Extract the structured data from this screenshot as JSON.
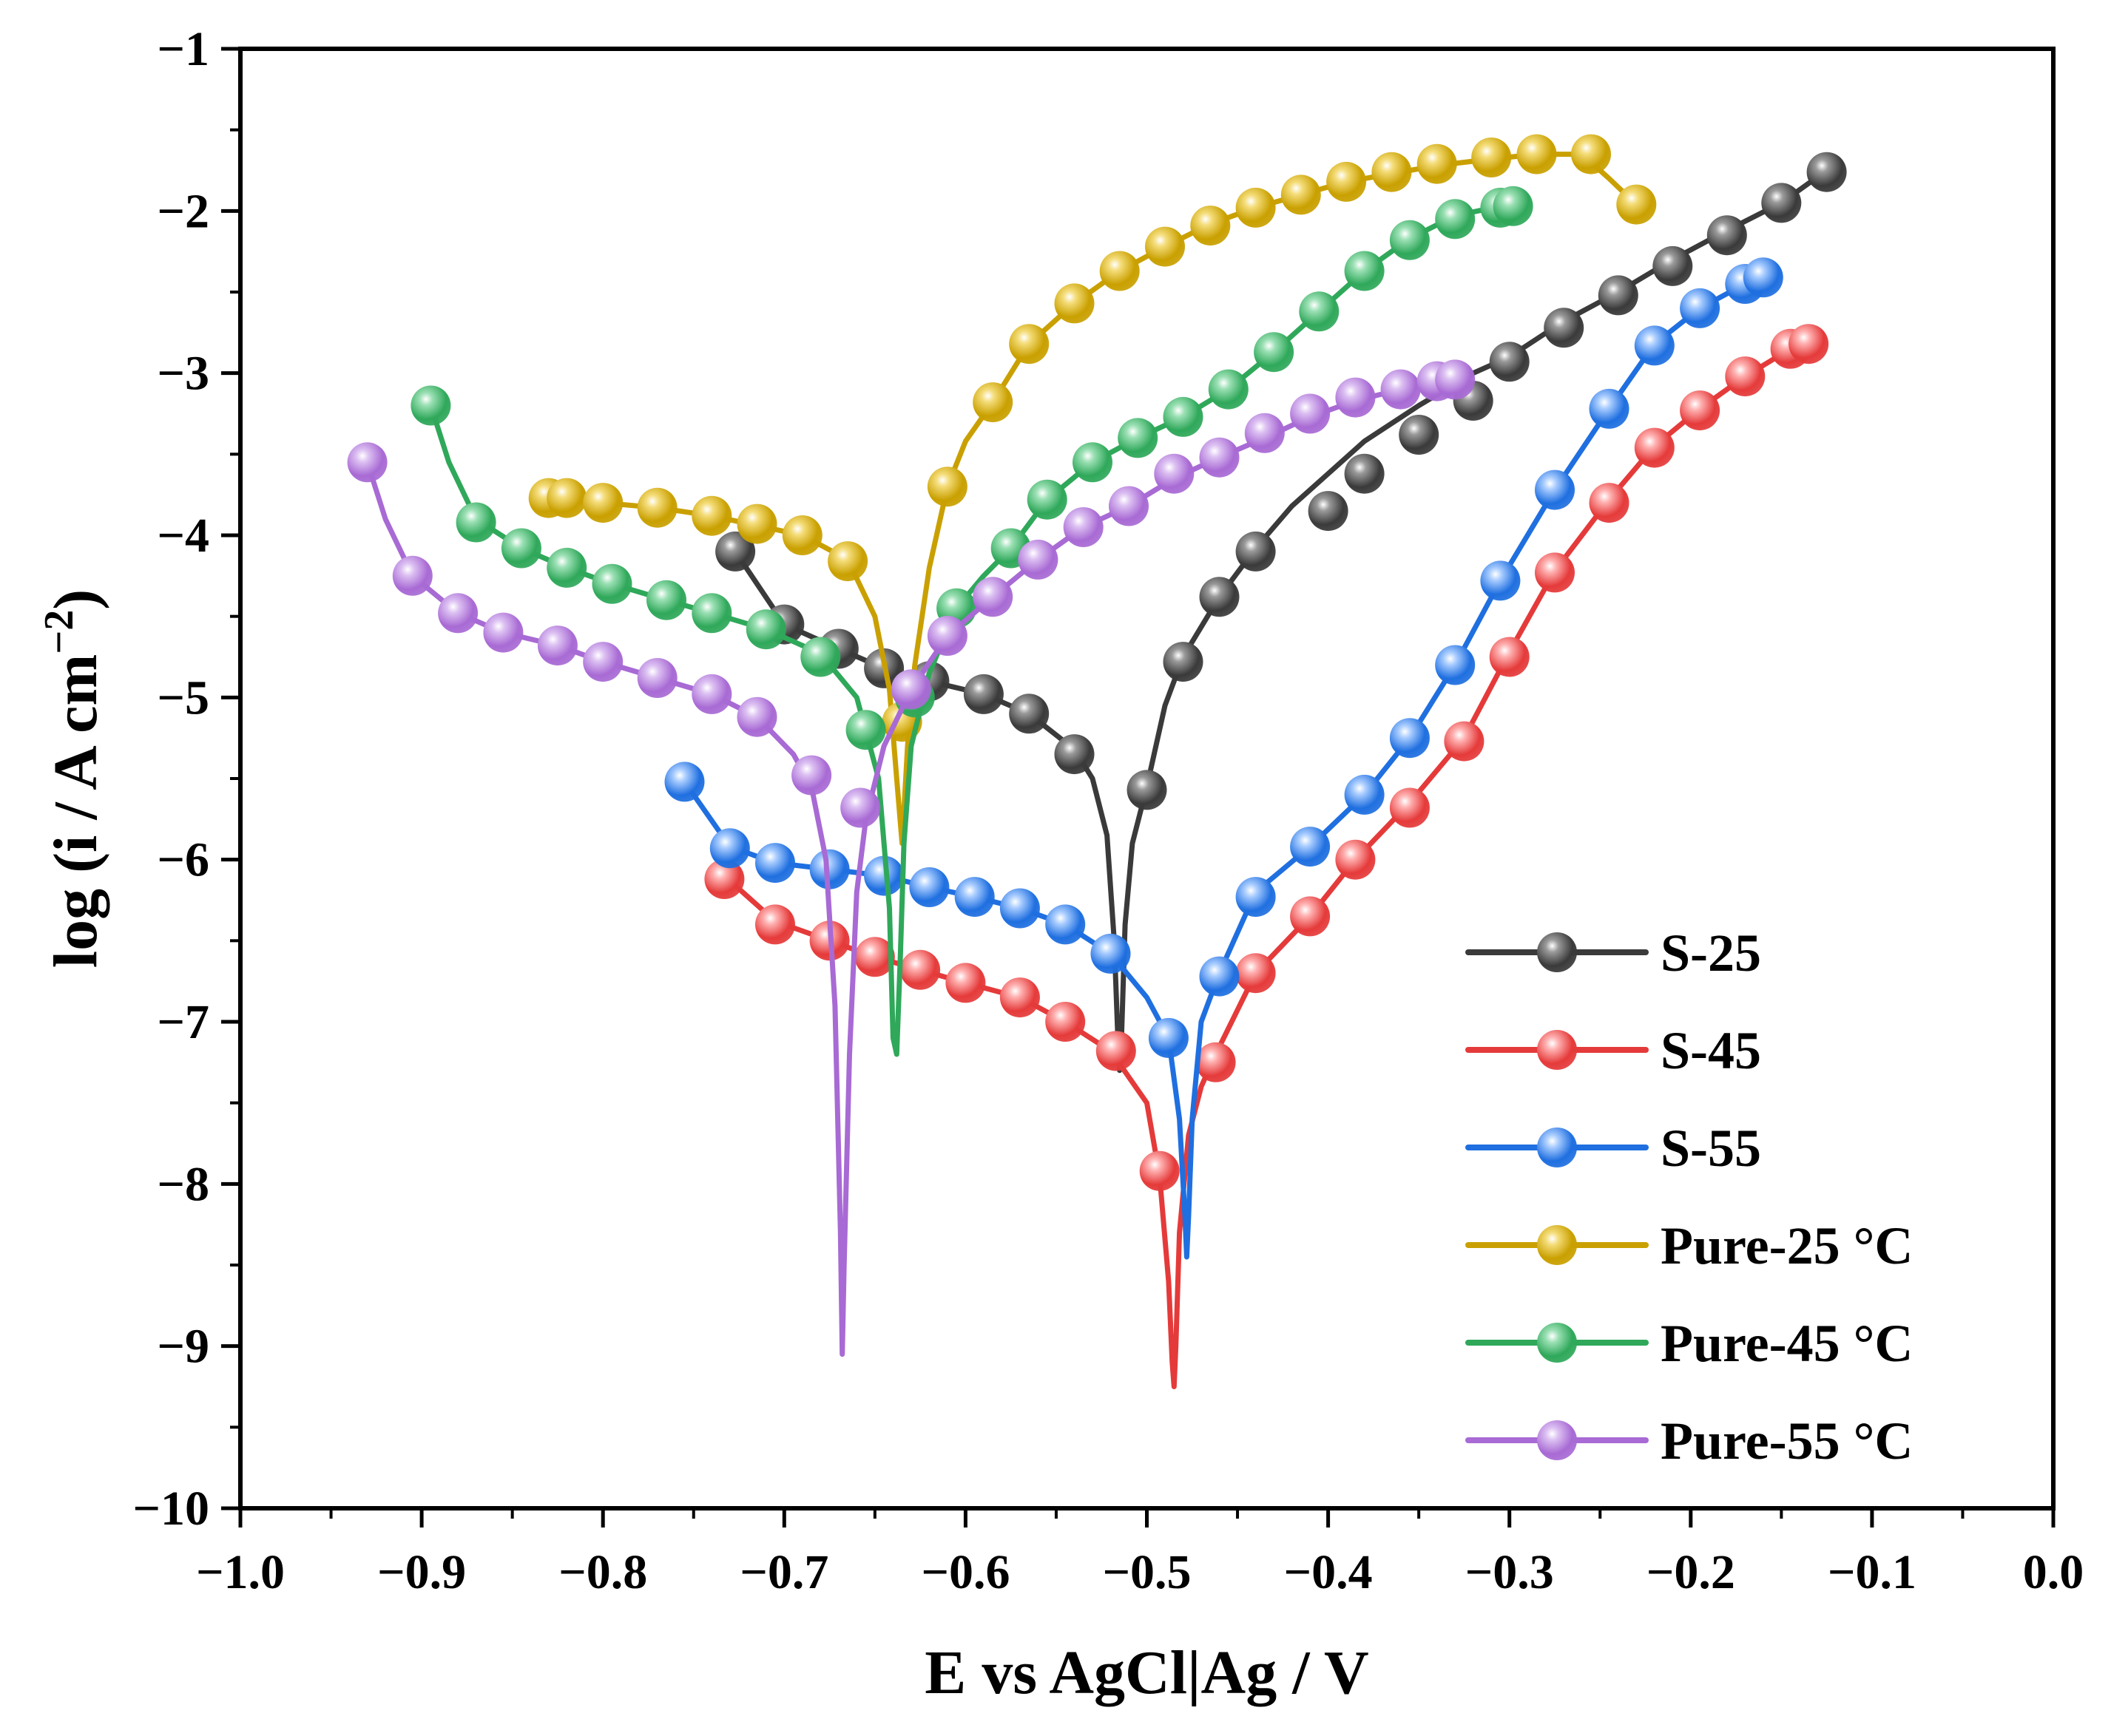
{
  "chart_data": {
    "type": "line",
    "title": "",
    "xlabel": "E vs AgCl|Ag / V",
    "ylabel_main": "log (i / A cm",
    "ylabel_sup": "−2",
    "ylabel_close": ")",
    "xlim": [
      -1.0,
      0.0
    ],
    "ylim": [
      -10,
      -1
    ],
    "x_ticks": [
      -1.0,
      -0.9,
      -0.8,
      -0.7,
      -0.6,
      -0.5,
      -0.4,
      -0.3,
      -0.2,
      -0.1,
      0.0
    ],
    "x_tick_labels": [
      "−1.0",
      "−0.9",
      "−0.8",
      "−0.7",
      "−0.6",
      "−0.5",
      "−0.4",
      "−0.3",
      "−0.2",
      "−0.1",
      "0.0"
    ],
    "y_ticks": [
      -1,
      -2,
      -3,
      -4,
      -5,
      -6,
      -7,
      -8,
      -9,
      -10
    ],
    "y_tick_labels": [
      "−1",
      "−2",
      "−3",
      "−4",
      "−5",
      "−6",
      "−7",
      "−8",
      "−9",
      "−10"
    ],
    "grid": false,
    "legend_position": "bottom-right",
    "series": [
      {
        "name": "S-25",
        "color": "#3a3a3a",
        "highlight": "#9a9a9a",
        "corrosion_potential": -0.515,
        "line_x": [
          -0.727,
          -0.7,
          -0.67,
          -0.645,
          -0.62,
          -0.59,
          -0.565,
          -0.54,
          -0.53,
          -0.522,
          -0.518,
          -0.516,
          -0.515,
          -0.514,
          -0.512,
          -0.508,
          -0.5,
          -0.49,
          -0.48,
          -0.46,
          -0.44,
          -0.42,
          -0.4,
          -0.38,
          -0.35,
          -0.32,
          -0.3,
          -0.27,
          -0.24,
          -0.21,
          -0.18,
          -0.15,
          -0.125
        ],
        "line_y": [
          -4.1,
          -4.55,
          -4.7,
          -4.82,
          -4.9,
          -4.98,
          -5.1,
          -5.32,
          -5.5,
          -5.85,
          -6.5,
          -7.1,
          -7.3,
          -7.1,
          -6.4,
          -5.9,
          -5.55,
          -5.05,
          -4.75,
          -4.38,
          -4.08,
          -3.82,
          -3.62,
          -3.42,
          -3.2,
          -3.0,
          -2.9,
          -2.68,
          -2.5,
          -2.3,
          -2.12,
          -1.95,
          -1.75
        ],
        "marker_x": [
          -0.727,
          -0.7,
          -0.67,
          -0.645,
          -0.62,
          -0.59,
          -0.565,
          -0.54,
          -0.5,
          -0.48,
          -0.46,
          -0.44,
          -0.4,
          -0.38,
          -0.35,
          -0.32,
          -0.3,
          -0.27,
          -0.24,
          -0.21,
          -0.18,
          -0.15,
          -0.125
        ],
        "marker_y": [
          -4.1,
          -4.55,
          -4.7,
          -4.82,
          -4.9,
          -4.98,
          -5.1,
          -5.35,
          -5.57,
          -4.78,
          -4.38,
          -4.1,
          -3.85,
          -3.62,
          -3.38,
          -3.17,
          -2.93,
          -2.72,
          -2.52,
          -2.34,
          -2.15,
          -1.95,
          -1.76
        ]
      },
      {
        "name": "S-45",
        "color": "#e53a3a",
        "highlight": "#ffb0b0",
        "corrosion_potential": -0.485,
        "line_x": [
          -0.733,
          -0.705,
          -0.675,
          -0.65,
          -0.625,
          -0.6,
          -0.57,
          -0.545,
          -0.52,
          -0.5,
          -0.493,
          -0.488,
          -0.486,
          -0.485,
          -0.484,
          -0.482,
          -0.477,
          -0.47,
          -0.462,
          -0.44,
          -0.41,
          -0.385,
          -0.355,
          -0.325,
          -0.3,
          -0.275,
          -0.245,
          -0.22,
          -0.195,
          -0.17,
          -0.145,
          -0.135
        ],
        "line_y": [
          -6.1,
          -6.38,
          -6.5,
          -6.6,
          -6.68,
          -6.76,
          -6.85,
          -7.0,
          -7.18,
          -7.5,
          -7.95,
          -8.6,
          -9.1,
          -9.25,
          -9.0,
          -8.3,
          -7.7,
          -7.4,
          -7.2,
          -6.7,
          -6.35,
          -6.0,
          -5.65,
          -5.25,
          -4.72,
          -4.22,
          -3.78,
          -3.45,
          -3.22,
          -3.02,
          -2.85,
          -2.82
        ],
        "marker_x": [
          -0.733,
          -0.705,
          -0.675,
          -0.65,
          -0.625,
          -0.6,
          -0.57,
          -0.545,
          -0.517,
          -0.493,
          -0.462,
          -0.44,
          -0.41,
          -0.385,
          -0.355,
          -0.325,
          -0.3,
          -0.275,
          -0.245,
          -0.22,
          -0.195,
          -0.17,
          -0.145,
          -0.135
        ],
        "marker_y": [
          -6.12,
          -6.4,
          -6.5,
          -6.6,
          -6.68,
          -6.76,
          -6.85,
          -7.0,
          -7.18,
          -7.92,
          -7.25,
          -6.7,
          -6.35,
          -6.0,
          -5.68,
          -5.27,
          -4.75,
          -4.23,
          -3.8,
          -3.46,
          -3.23,
          -3.02,
          -2.85,
          -2.82
        ]
      },
      {
        "name": "S-55",
        "color": "#1f6fe0",
        "highlight": "#a8ccff",
        "corrosion_potential": -0.478,
        "line_x": [
          -0.755,
          -0.73,
          -0.705,
          -0.675,
          -0.645,
          -0.62,
          -0.595,
          -0.57,
          -0.545,
          -0.52,
          -0.5,
          -0.488,
          -0.482,
          -0.479,
          -0.478,
          -0.477,
          -0.475,
          -0.47,
          -0.46,
          -0.44,
          -0.41,
          -0.38,
          -0.355,
          -0.33,
          -0.305,
          -0.275,
          -0.245,
          -0.22,
          -0.195,
          -0.17,
          -0.16
        ],
        "line_y": [
          -5.52,
          -5.92,
          -6.02,
          -6.06,
          -6.1,
          -6.17,
          -6.23,
          -6.3,
          -6.4,
          -6.58,
          -6.85,
          -7.1,
          -7.6,
          -8.2,
          -8.45,
          -8.2,
          -7.6,
          -7.0,
          -6.7,
          -6.2,
          -5.92,
          -5.6,
          -5.25,
          -4.8,
          -4.28,
          -3.72,
          -3.22,
          -2.82,
          -2.6,
          -2.45,
          -2.4
        ],
        "marker_x": [
          -0.755,
          -0.73,
          -0.705,
          -0.675,
          -0.645,
          -0.62,
          -0.595,
          -0.57,
          -0.545,
          -0.52,
          -0.488,
          -0.46,
          -0.44,
          -0.41,
          -0.38,
          -0.355,
          -0.33,
          -0.305,
          -0.275,
          -0.245,
          -0.22,
          -0.195,
          -0.17,
          -0.16
        ],
        "marker_y": [
          -5.52,
          -5.93,
          -6.02,
          -6.06,
          -6.1,
          -6.17,
          -6.23,
          -6.3,
          -6.4,
          -6.58,
          -7.1,
          -6.72,
          -6.23,
          -5.92,
          -5.6,
          -5.25,
          -4.8,
          -4.28,
          -3.72,
          -3.22,
          -2.83,
          -2.6,
          -2.45,
          -2.41
        ]
      },
      {
        "name": "Pure-25 °C",
        "color": "#c9a000",
        "highlight": "#f4dc78",
        "corrosion_potential": -0.635,
        "line_x": [
          -0.83,
          -0.82,
          -0.8,
          -0.77,
          -0.74,
          -0.715,
          -0.69,
          -0.665,
          -0.65,
          -0.642,
          -0.638,
          -0.635,
          -0.632,
          -0.628,
          -0.62,
          -0.61,
          -0.6,
          -0.585,
          -0.565,
          -0.54,
          -0.515,
          -0.49,
          -0.465,
          -0.44,
          -0.415,
          -0.39,
          -0.365,
          -0.34,
          -0.31,
          -0.285,
          -0.26,
          -0.245,
          -0.23
        ],
        "line_y": [
          -3.78,
          -3.78,
          -3.8,
          -3.83,
          -3.88,
          -3.94,
          -4.0,
          -4.15,
          -4.5,
          -4.95,
          -5.5,
          -5.9,
          -5.3,
          -4.8,
          -4.2,
          -3.7,
          -3.42,
          -3.18,
          -2.82,
          -2.57,
          -2.37,
          -2.22,
          -2.08,
          -1.98,
          -1.9,
          -1.82,
          -1.77,
          -1.72,
          -1.68,
          -1.65,
          -1.65,
          -1.8,
          -1.96
        ],
        "marker_x": [
          -0.83,
          -0.82,
          -0.8,
          -0.77,
          -0.74,
          -0.715,
          -0.69,
          -0.665,
          -0.635,
          -0.61,
          -0.585,
          -0.565,
          -0.54,
          -0.515,
          -0.49,
          -0.465,
          -0.44,
          -0.415,
          -0.39,
          -0.365,
          -0.34,
          -0.31,
          -0.285,
          -0.255,
          -0.23
        ],
        "marker_y": [
          -3.77,
          -3.77,
          -3.8,
          -3.83,
          -3.88,
          -3.93,
          -4.0,
          -4.16,
          -5.15,
          -3.7,
          -3.18,
          -2.82,
          -2.57,
          -2.37,
          -2.22,
          -2.09,
          -1.98,
          -1.9,
          -1.82,
          -1.76,
          -1.71,
          -1.67,
          -1.65,
          -1.65,
          -1.96
        ]
      },
      {
        "name": "Pure-45 °C",
        "color": "#2fa85a",
        "highlight": "#9be0b4",
        "corrosion_potential": -0.638,
        "line_x": [
          -0.895,
          -0.885,
          -0.87,
          -0.845,
          -0.82,
          -0.795,
          -0.765,
          -0.74,
          -0.71,
          -0.68,
          -0.66,
          -0.648,
          -0.642,
          -0.64,
          -0.638,
          -0.636,
          -0.634,
          -0.63,
          -0.62,
          -0.605,
          -0.59,
          -0.575,
          -0.555,
          -0.53,
          -0.505,
          -0.48,
          -0.455,
          -0.43,
          -0.405,
          -0.38,
          -0.355,
          -0.33,
          -0.305,
          -0.295
        ],
        "line_y": [
          -3.2,
          -3.55,
          -3.9,
          -4.08,
          -4.2,
          -4.3,
          -4.4,
          -4.48,
          -4.58,
          -4.73,
          -5.0,
          -5.5,
          -6.3,
          -7.1,
          -7.2,
          -6.6,
          -5.9,
          -5.3,
          -4.85,
          -4.45,
          -4.25,
          -4.08,
          -3.78,
          -3.55,
          -3.4,
          -3.27,
          -3.1,
          -2.87,
          -2.62,
          -2.37,
          -2.17,
          -2.03,
          -1.97,
          -1.97
        ],
        "marker_x": [
          -0.895,
          -0.87,
          -0.845,
          -0.82,
          -0.795,
          -0.765,
          -0.74,
          -0.71,
          -0.68,
          -0.655,
          -0.628,
          -0.605,
          -0.575,
          -0.555,
          -0.53,
          -0.505,
          -0.48,
          -0.455,
          -0.43,
          -0.405,
          -0.38,
          -0.355,
          -0.33,
          -0.305,
          -0.298
        ],
        "marker_y": [
          -3.2,
          -3.92,
          -4.08,
          -4.2,
          -4.3,
          -4.4,
          -4.48,
          -4.58,
          -4.75,
          -5.2,
          -5.0,
          -4.45,
          -4.08,
          -3.78,
          -3.55,
          -3.4,
          -3.27,
          -3.1,
          -2.87,
          -2.62,
          -2.37,
          -2.18,
          -2.05,
          -1.98,
          -1.97
        ]
      },
      {
        "name": "Pure-55 °C",
        "color": "#a86ad4",
        "highlight": "#dcc0f2",
        "corrosion_potential": -0.668,
        "line_x": [
          -0.93,
          -0.92,
          -0.905,
          -0.88,
          -0.855,
          -0.825,
          -0.8,
          -0.77,
          -0.74,
          -0.715,
          -0.695,
          -0.685,
          -0.677,
          -0.672,
          -0.669,
          -0.668,
          -0.667,
          -0.664,
          -0.66,
          -0.655,
          -0.645,
          -0.63,
          -0.61,
          -0.585,
          -0.56,
          -0.535,
          -0.51,
          -0.485,
          -0.46,
          -0.435,
          -0.41,
          -0.385,
          -0.36,
          -0.34,
          -0.33
        ],
        "line_y": [
          -3.55,
          -3.9,
          -4.25,
          -4.48,
          -4.6,
          -4.68,
          -4.78,
          -4.88,
          -4.98,
          -5.12,
          -5.35,
          -5.55,
          -6.0,
          -6.9,
          -8.3,
          -9.05,
          -8.5,
          -7.2,
          -6.2,
          -5.75,
          -5.3,
          -4.95,
          -4.62,
          -4.38,
          -4.15,
          -3.95,
          -3.82,
          -3.65,
          -3.52,
          -3.4,
          -3.27,
          -3.17,
          -3.1,
          -3.05,
          -3.04
        ],
        "marker_x": [
          -0.93,
          -0.905,
          -0.88,
          -0.855,
          -0.825,
          -0.8,
          -0.77,
          -0.74,
          -0.715,
          -0.685,
          -0.658,
          -0.63,
          -0.61,
          -0.585,
          -0.56,
          -0.535,
          -0.51,
          -0.485,
          -0.46,
          -0.435,
          -0.41,
          -0.385,
          -0.36,
          -0.34,
          -0.33
        ],
        "marker_y": [
          -3.55,
          -4.25,
          -4.48,
          -4.6,
          -4.68,
          -4.78,
          -4.88,
          -4.98,
          -5.12,
          -5.48,
          -5.68,
          -4.95,
          -4.62,
          -4.38,
          -4.15,
          -3.95,
          -3.82,
          -3.62,
          -3.52,
          -3.37,
          -3.25,
          -3.15,
          -3.1,
          -3.05,
          -3.04
        ]
      }
    ]
  }
}
